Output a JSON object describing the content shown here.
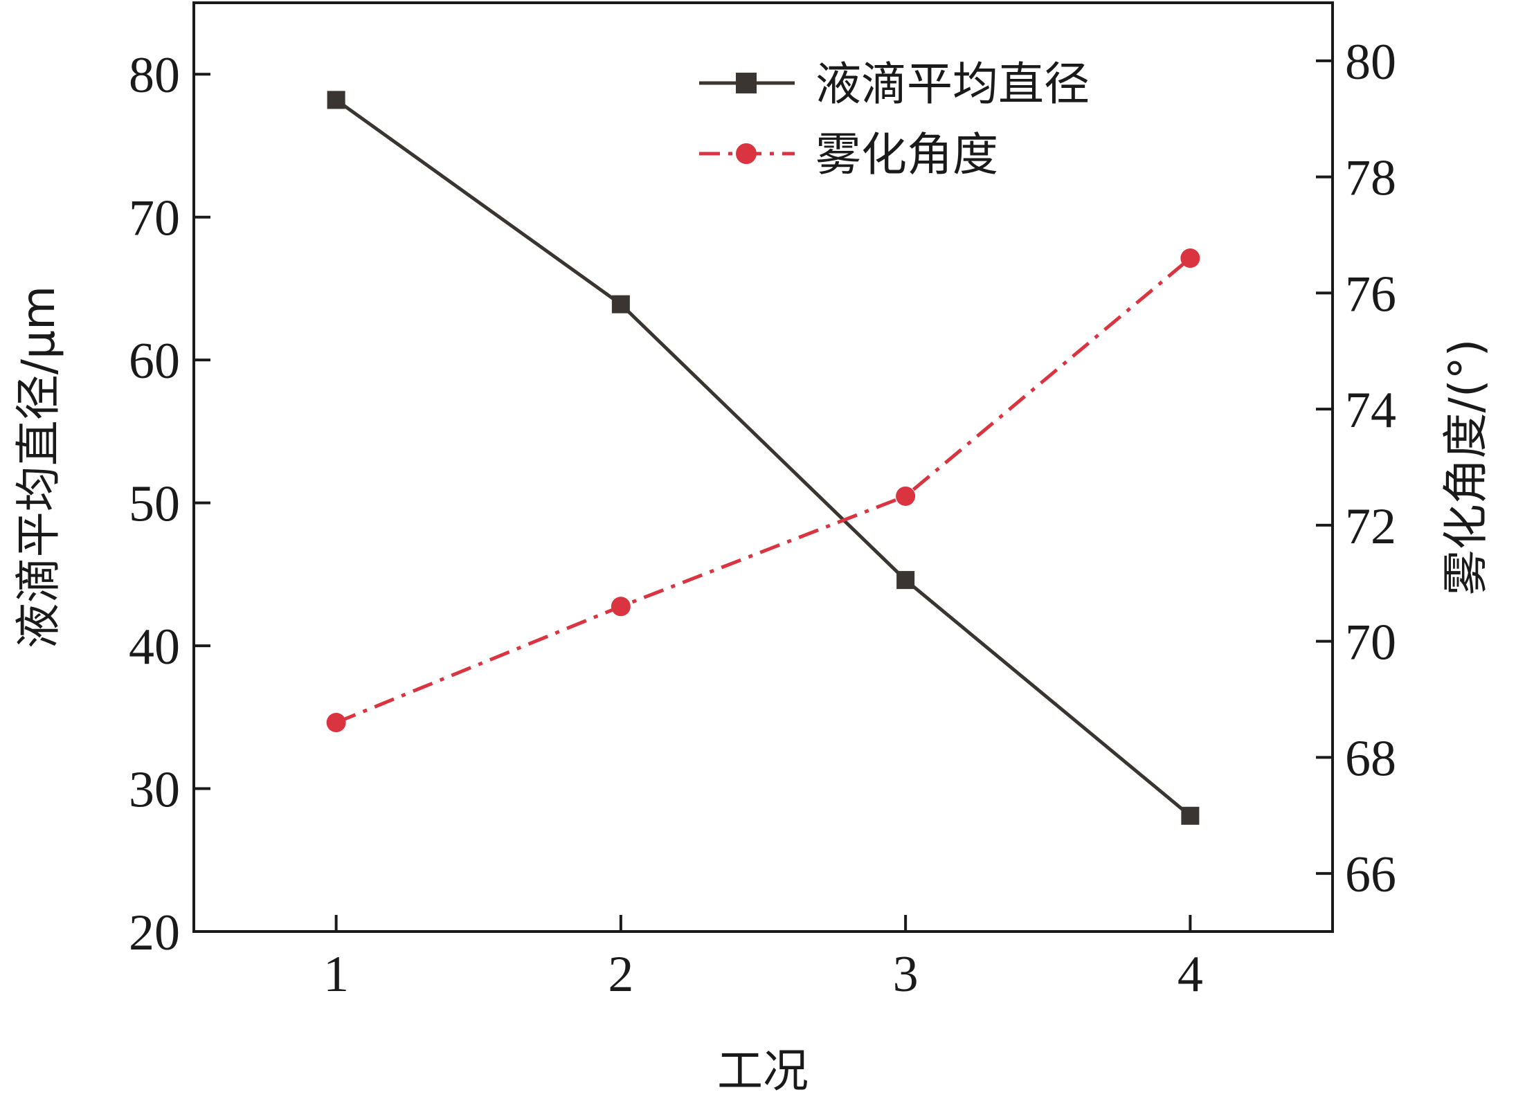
{
  "chart_data": {
    "type": "line",
    "x_axis": {
      "label": "工况",
      "ticks": [
        1,
        2,
        3,
        4
      ],
      "range": [
        0.5,
        4.5
      ]
    },
    "y_left": {
      "label": "液滴平均直径/μm",
      "ticks": [
        20,
        30,
        40,
        50,
        60,
        70,
        80
      ],
      "range": [
        20,
        85
      ]
    },
    "y_right": {
      "label": "雾化角度/(°)",
      "ticks": [
        66,
        68,
        70,
        72,
        74,
        76,
        78,
        80
      ],
      "range": [
        65,
        81
      ]
    },
    "legend_position": "top-right",
    "grid": false,
    "series": [
      {
        "name": "液滴平均直径",
        "axis": "left",
        "x": [
          1,
          2,
          3,
          4
        ],
        "values": [
          78.2,
          63.9,
          44.6,
          28.1
        ],
        "color": "#3a3530",
        "marker": "square",
        "line_style": "solid"
      },
      {
        "name": "雾化角度",
        "axis": "right",
        "x": [
          1,
          2,
          3,
          4
        ],
        "values": [
          68.6,
          70.6,
          72.5,
          76.6
        ],
        "color": "#d9343f",
        "marker": "circle",
        "line_style": "dash-dot"
      }
    ]
  }
}
